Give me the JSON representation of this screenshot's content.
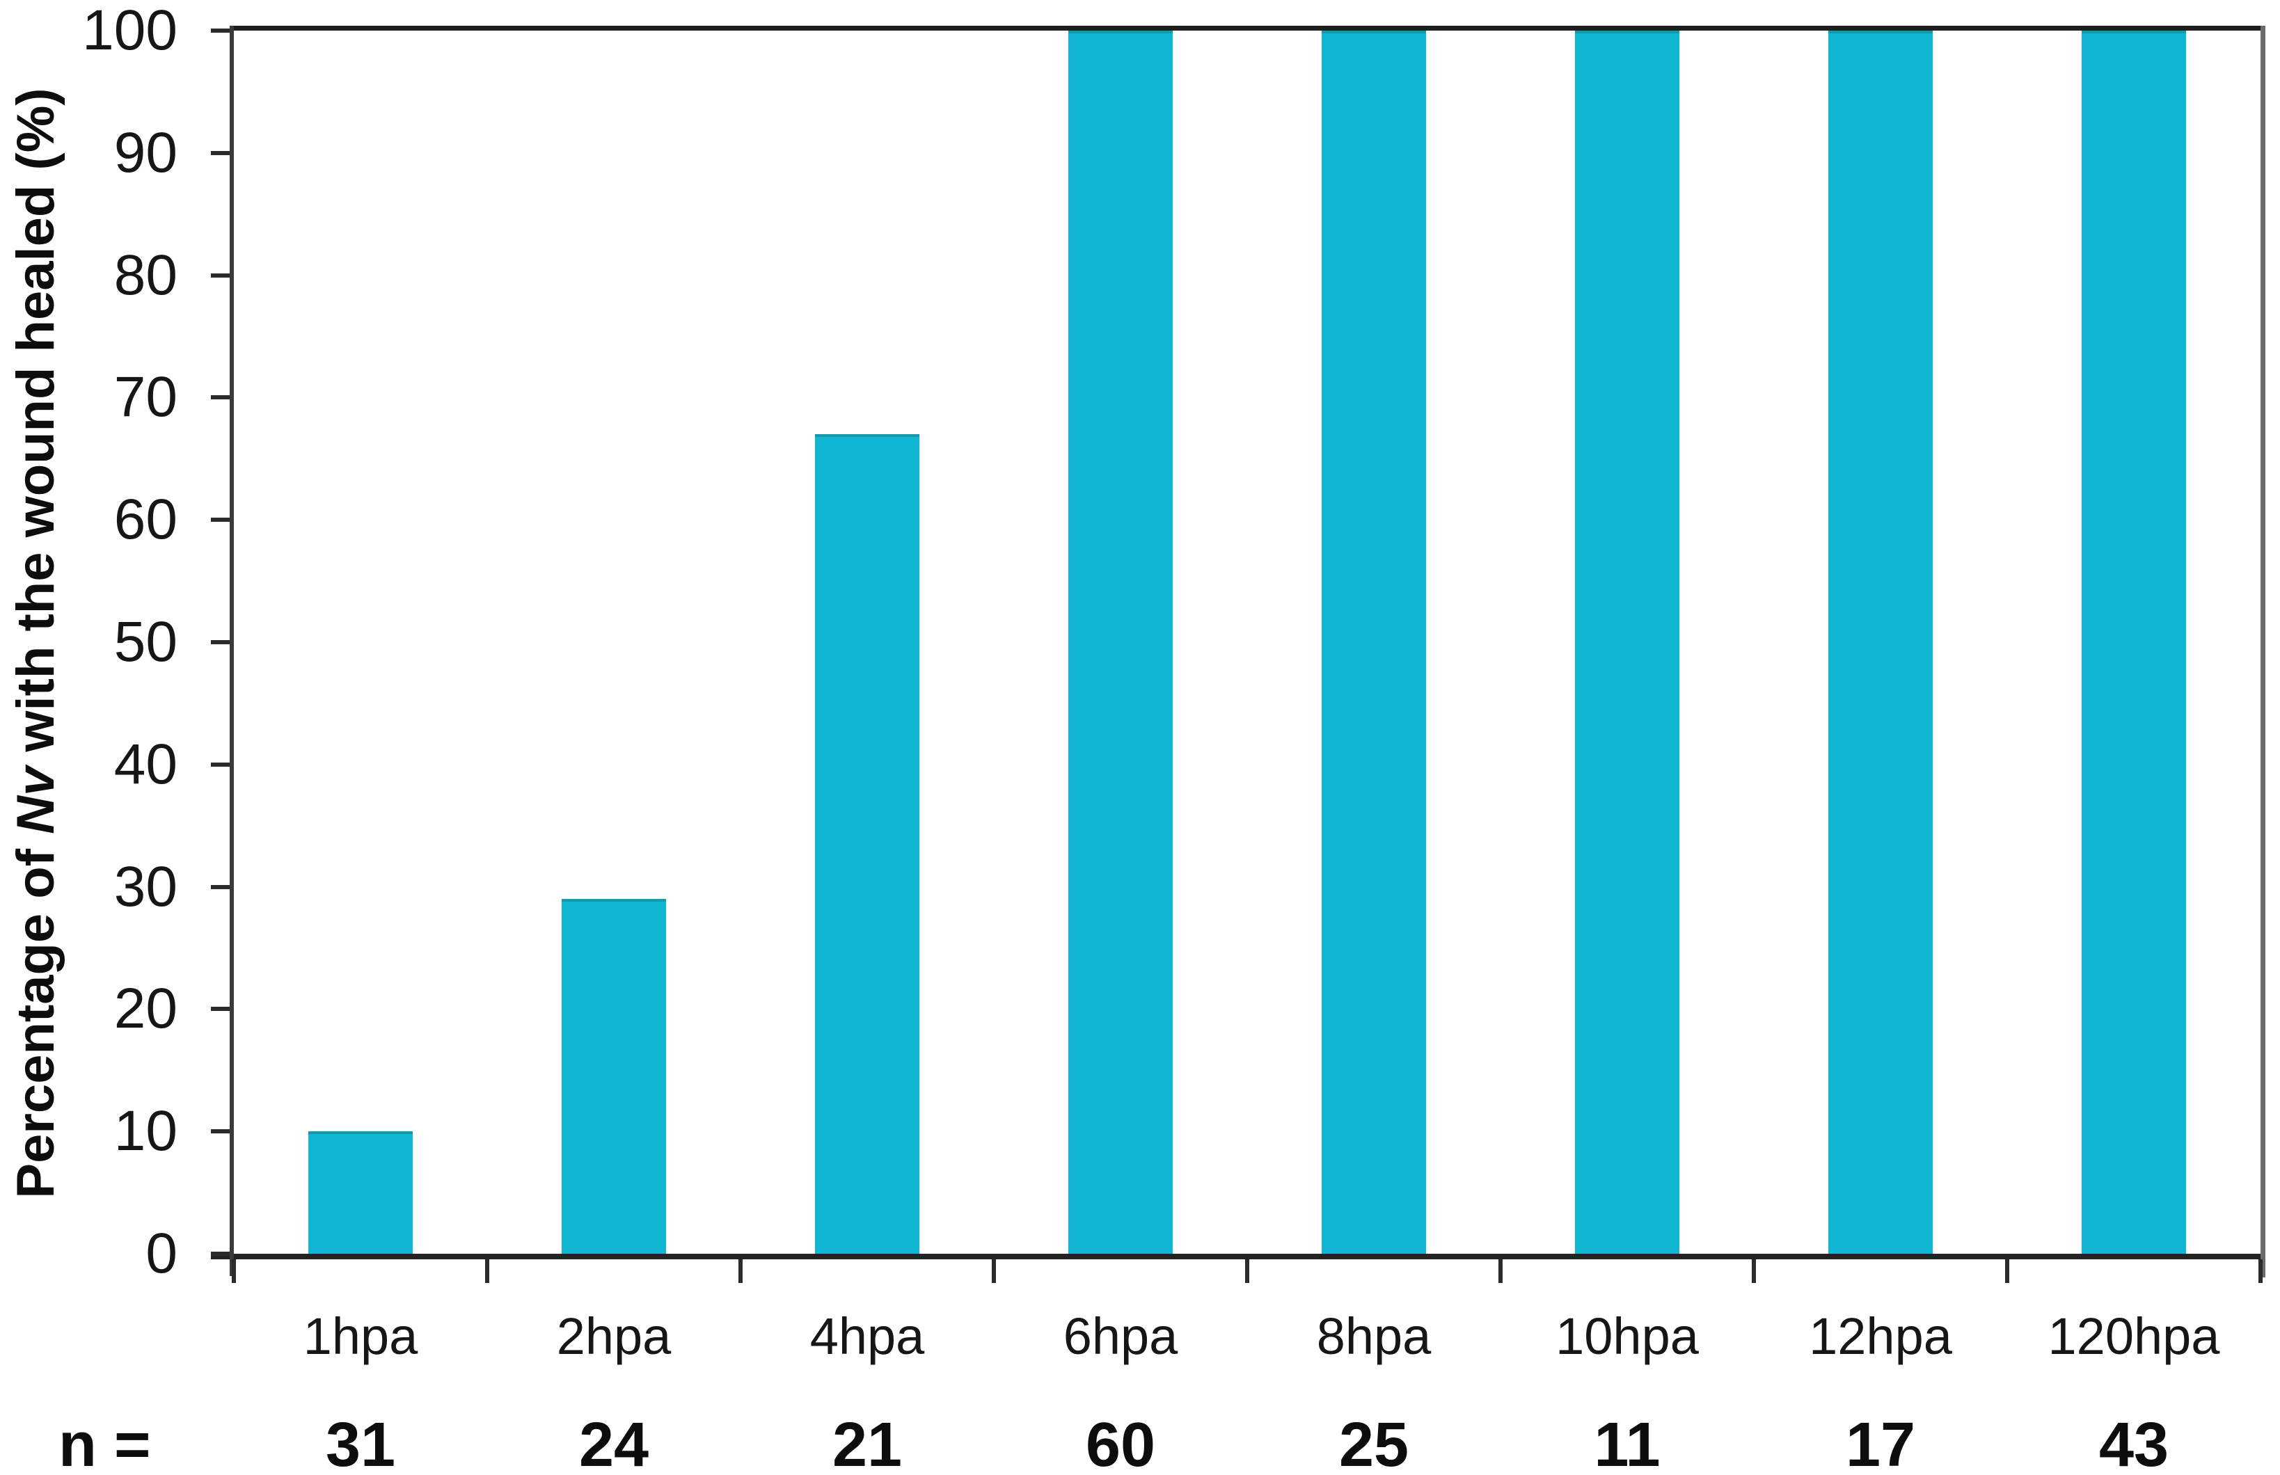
{
  "chart_data": {
    "type": "bar",
    "title": "",
    "ylabel_prefix": "Percentage of ",
    "ylabel_italic": "Nv",
    "ylabel_suffix": " with the wound healed (%)",
    "xlabel": "",
    "categories": [
      "1hpa",
      "2hpa",
      "4hpa",
      "6hpa",
      "8hpa",
      "10hpa",
      "12hpa",
      "120hpa"
    ],
    "values": [
      10,
      29,
      67,
      100,
      100,
      100,
      100,
      100
    ],
    "yticks": [
      0,
      10,
      20,
      30,
      40,
      50,
      60,
      70,
      80,
      90,
      100
    ],
    "ylim": [
      0,
      100
    ],
    "grid": false,
    "legend_position": "none",
    "sample_sizes_label": "n =",
    "sample_sizes": [
      31,
      24,
      21,
      60,
      25,
      11,
      17,
      43
    ],
    "bar_color": "#0FB7D3",
    "bar_top_edge_color": "#1898ad",
    "axis_color": "#232323",
    "right_border_color": "#6b6b6b"
  }
}
